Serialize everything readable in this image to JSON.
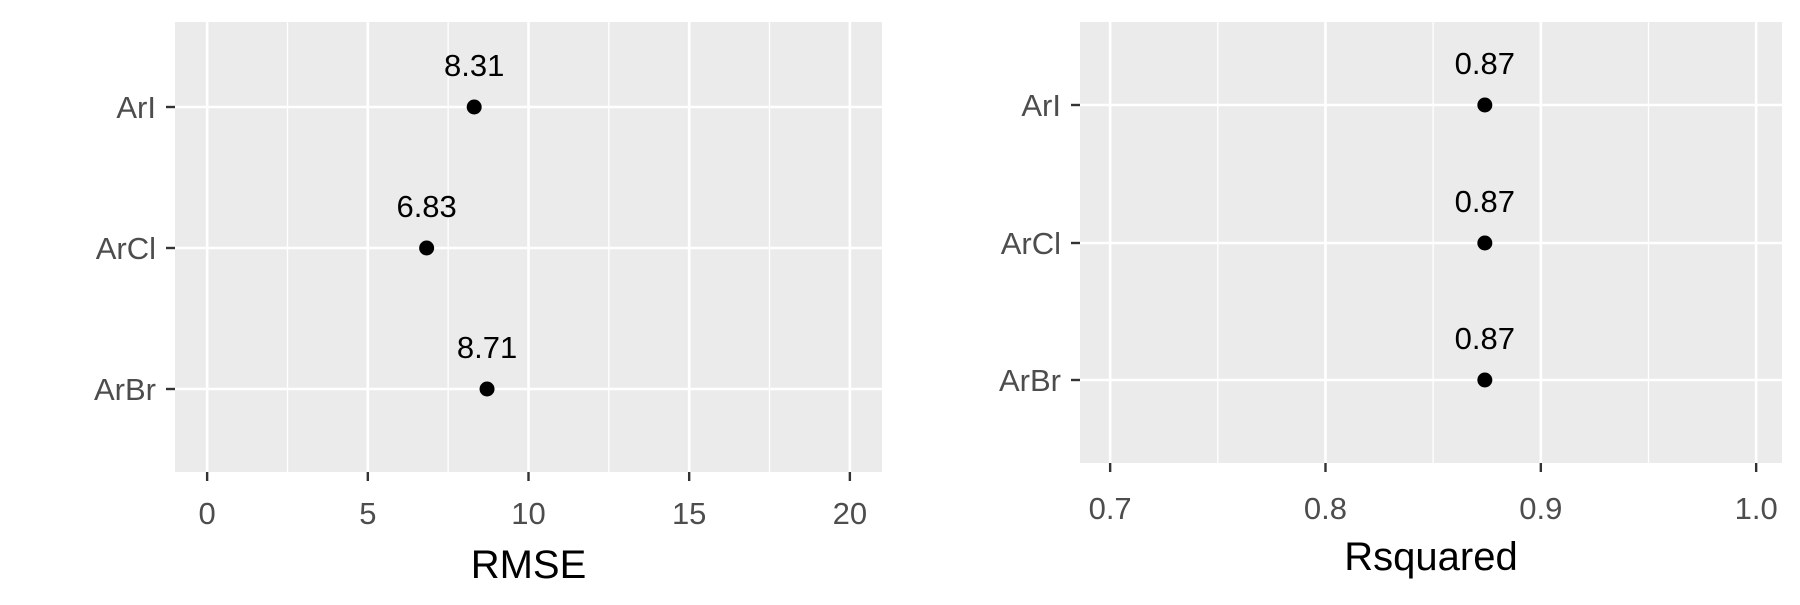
{
  "chart_data": [
    {
      "type": "scatter",
      "categories": [
        "ArI",
        "ArCl",
        "ArBr"
      ],
      "values": [
        8.31,
        6.83,
        8.71
      ],
      "point_labels": [
        "8.31",
        "6.83",
        "8.71"
      ],
      "xlabel": "RMSE",
      "ylabel": "",
      "xlim": [
        -1,
        21
      ],
      "xticks": [
        0,
        5,
        10,
        15,
        20
      ],
      "xtick_labels": [
        "0",
        "5",
        "10",
        "15",
        "20"
      ],
      "grid": true
    },
    {
      "type": "scatter",
      "categories": [
        "ArI",
        "ArCl",
        "ArBr"
      ],
      "values": [
        0.874,
        0.874,
        0.874
      ],
      "point_labels": [
        "0.87",
        "0.87",
        "0.87"
      ],
      "xlabel": "Rsquared",
      "ylabel": "",
      "xlim": [
        0.686,
        1.012
      ],
      "xticks": [
        0.7,
        0.8,
        0.9,
        1.0
      ],
      "xtick_labels": [
        "0.7",
        "0.8",
        "0.9",
        "1.0"
      ],
      "grid": true
    }
  ],
  "colors": {
    "panel_background": "#ebebeb",
    "grid": "#ffffff",
    "point": "#000000",
    "tick_text": "#4d4d4d"
  }
}
